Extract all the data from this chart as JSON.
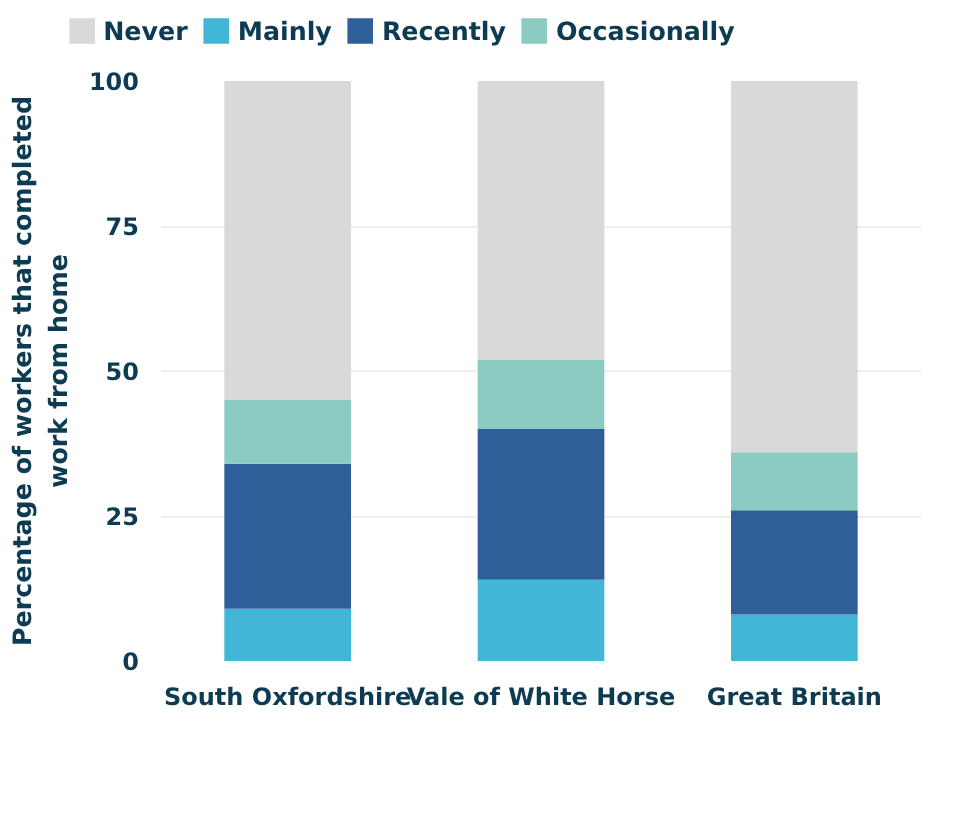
{
  "chart_data": {
    "type": "bar",
    "stacked": true,
    "ylabel": "Percentage of workers that completed work from home",
    "categories": [
      "South Oxfordshire",
      "Vale of White Horse",
      "Great Britain"
    ],
    "series": [
      {
        "name": "Mainly",
        "color": "#41b6d6",
        "values": [
          9,
          14,
          8
        ]
      },
      {
        "name": "Recently",
        "color": "#2e5f98",
        "values": [
          25,
          26,
          18
        ]
      },
      {
        "name": "Occasionally",
        "color": "#8ccbc1",
        "values": [
          11,
          12,
          10
        ]
      },
      {
        "name": "Never",
        "color": "#d9d9d9",
        "values": [
          55,
          48,
          64
        ]
      }
    ],
    "ylim": [
      0,
      100
    ],
    "yticks": [
      0,
      25,
      50,
      75,
      100
    ],
    "grid": "y",
    "legend": "top"
  }
}
